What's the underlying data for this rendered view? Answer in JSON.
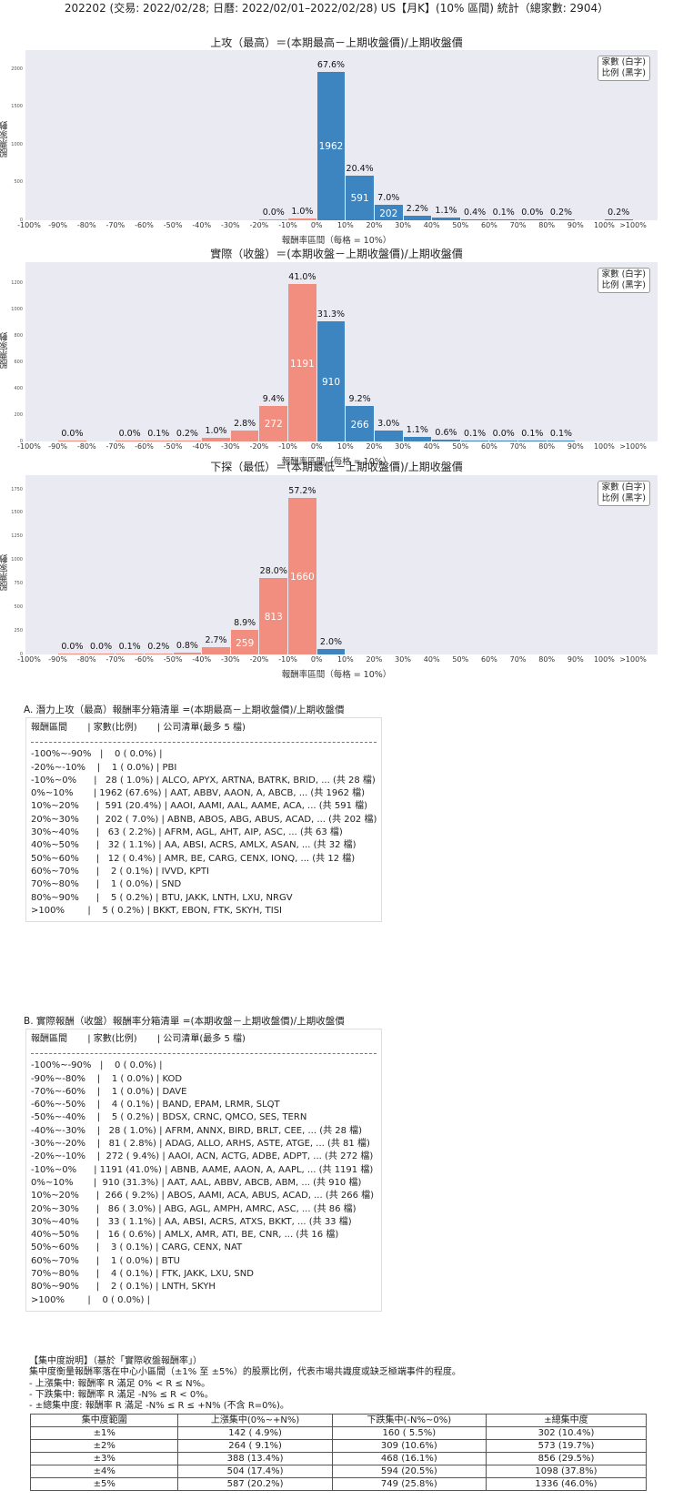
{
  "header": {
    "title": "202202 (交易: 2022/02/28; 日曆: 2022/02/01–2022/02/28) US【月K】(10% 區間) 統計（總家數: 2904）"
  },
  "common": {
    "ylabel": "股票家數",
    "xlabel": "報酬率區間（每格 = 10%）",
    "legend_line1": "家數 (白字)",
    "legend_line2": "比例 (黑字)",
    "xticks": [
      "-100%",
      "-90%",
      "-80%",
      "-70%",
      "-60%",
      "-50%",
      "-40%",
      "-30%",
      "-20%",
      "-10%",
      "0%",
      "10%",
      "20%",
      "30%",
      "40%",
      "50%",
      "60%",
      "70%",
      "80%",
      "90%",
      "100%",
      ">100%"
    ],
    "colors": {
      "negative": "#f28e7f",
      "positive": "#3d85c0",
      "plot_bg": "#eaeaf2"
    }
  },
  "chart_data": [
    {
      "type": "bar",
      "title": "上攻（最高）＝(本期最高－上期收盤價)/上期收盤價",
      "xlabel": "報酬率區間（每格 = 10%）",
      "ylabel": "股票家數",
      "yticks": [
        0,
        500,
        1000,
        1500,
        2000
      ],
      "ylim": [
        0,
        2250
      ],
      "categories": [
        "-100%~-90%",
        "-90%~-80%",
        "-80%~-70%",
        "-70%~-60%",
        "-60%~-50%",
        "-50%~-40%",
        "-40%~-30%",
        "-30%~-20%",
        "-20%~-10%",
        "-10%~0%",
        "0%~10%",
        "10%~20%",
        "20%~30%",
        "30%~40%",
        "40%~50%",
        "50%~60%",
        "60%~70%",
        "70%~80%",
        "80%~90%",
        "90%~100%",
        ">100%"
      ],
      "values": [
        0,
        0,
        0,
        0,
        0,
        0,
        0,
        0,
        1,
        28,
        1962,
        591,
        202,
        63,
        32,
        12,
        2,
        1,
        5,
        0,
        5
      ],
      "percent_labels": [
        "",
        "",
        "",
        "",
        "",
        "",
        "",
        "",
        "0.0%",
        "1.0%",
        "67.6%",
        "20.4%",
        "7.0%",
        "2.2%",
        "1.1%",
        "0.4%",
        "0.1%",
        "0.0%",
        "0.2%",
        "",
        "0.2%"
      ]
    },
    {
      "type": "bar",
      "title": "實際（收盤）＝(本期收盤－上期收盤價)/上期收盤價",
      "xlabel": "報酬率區間（每格 = 10%）",
      "ylabel": "股票家數",
      "yticks": [
        0,
        200,
        400,
        600,
        800,
        1000,
        1200
      ],
      "ylim": [
        0,
        1360
      ],
      "categories": [
        "-100%~-90%",
        "-90%~-80%",
        "-80%~-70%",
        "-70%~-60%",
        "-60%~-50%",
        "-50%~-40%",
        "-40%~-30%",
        "-30%~-20%",
        "-20%~-10%",
        "-10%~0%",
        "0%~10%",
        "10%~20%",
        "20%~30%",
        "30%~40%",
        "40%~50%",
        "50%~60%",
        "60%~70%",
        "70%~80%",
        "80%~90%",
        "90%~100%",
        ">100%"
      ],
      "values": [
        0,
        1,
        0,
        1,
        4,
        5,
        28,
        81,
        272,
        1191,
        910,
        266,
        86,
        33,
        16,
        3,
        1,
        4,
        2,
        0,
        0
      ],
      "percent_labels": [
        "",
        "0.0%",
        "",
        "0.0%",
        "0.1%",
        "0.2%",
        "1.0%",
        "2.8%",
        "9.4%",
        "41.0%",
        "31.3%",
        "9.2%",
        "3.0%",
        "1.1%",
        "0.6%",
        "0.1%",
        "0.0%",
        "0.1%",
        "0.1%",
        "",
        ""
      ]
    },
    {
      "type": "bar",
      "title": "下探（最低）＝(本期最低－上期收盤價)/上期收盤價",
      "xlabel": "報酬率區間（每格 = 10%）",
      "ylabel": "股票家數",
      "yticks": [
        0,
        250,
        500,
        750,
        1000,
        1250,
        1500,
        1750
      ],
      "ylim": [
        0,
        1900
      ],
      "categories": [
        "-100%~-90%",
        "-90%~-80%",
        "-80%~-70%",
        "-70%~-60%",
        "-60%~-50%",
        "-50%~-40%",
        "-40%~-30%",
        "-30%~-20%",
        "-20%~-10%",
        "-10%~0%",
        "0%~10%",
        "10%~20%",
        "20%~30%",
        "30%~40%",
        "40%~50%",
        "50%~60%",
        "60%~70%",
        "70%~80%",
        "80%~90%",
        "90%~100%",
        ">100%"
      ],
      "values": [
        0,
        1,
        1,
        3,
        6,
        24,
        79,
        259,
        813,
        1660,
        59,
        0,
        0,
        0,
        0,
        0,
        0,
        0,
        0,
        0,
        0
      ],
      "percent_labels": [
        "",
        "0.0%",
        "0.0%",
        "0.1%",
        "0.2%",
        "0.8%",
        "2.7%",
        "8.9%",
        "28.0%",
        "57.2%",
        "2.0%",
        "",
        "",
        "",
        "",
        "",
        "",
        "",
        "",
        "",
        ""
      ]
    }
  ],
  "list_a": {
    "title": "A. 潛力上攻（最高）報酬率分箱清單 =(本期最高－上期收盤價)/上期收盤價",
    "header": "報酬區間       | 家數(比例)       | 公司清單(最多 5 檔)",
    "rows": [
      "-100%~-90%   |    0 ( 0.0%) |",
      "-20%~-10%    |    1 ( 0.0%) | PBI",
      "-10%~0%      |   28 ( 1.0%) | ALCO, APYX, ARTNA, BATRK, BRID, ... (共 28 檔)",
      "0%~10%       | 1962 (67.6%) | AAT, ABBV, AAON, A, ABCB, ... (共 1962 檔)",
      "10%~20%      |  591 (20.4%) | AAOI, AAMI, AAL, AAME, ACA, ... (共 591 檔)",
      "20%~30%      |  202 ( 7.0%) | ABNB, ABOS, ABG, ABUS, ACAD, ... (共 202 檔)",
      "30%~40%      |   63 ( 2.2%) | AFRM, AGL, AHT, AIP, ASC, ... (共 63 檔)",
      "40%~50%      |   32 ( 1.1%) | AA, ABSI, ACRS, AMLX, ASAN, ... (共 32 檔)",
      "50%~60%      |   12 ( 0.4%) | AMR, BE, CARG, CENX, IONQ, ... (共 12 檔)",
      "60%~70%      |    2 ( 0.1%) | IVVD, KPTI",
      "70%~80%      |    1 ( 0.0%) | SND",
      "80%~90%      |    5 ( 0.2%) | BTU, JAKK, LNTH, LXU, NRGV",
      ">100%        |    5 ( 0.2%) | BKKT, EBON, FTK, SKYH, TISI"
    ]
  },
  "list_b": {
    "title": "B. 實際報酬（收盤）報酬率分箱清單 =(本期收盤－上期收盤價)/上期收盤價",
    "header": "報酬區間       | 家數(比例)       | 公司清單(最多 5 檔)",
    "rows": [
      "-100%~-90%   |    0 ( 0.0%) |",
      "-90%~-80%    |    1 ( 0.0%) | KOD",
      "-70%~-60%    |    1 ( 0.0%) | DAVE",
      "-60%~-50%    |    4 ( 0.1%) | BAND, EPAM, LRMR, SLQT",
      "-50%~-40%    |    5 ( 0.2%) | BDSX, CRNC, QMCO, SES, TERN",
      "-40%~-30%    |   28 ( 1.0%) | AFRM, ANNX, BIRD, BRLT, CEE, ... (共 28 檔)",
      "-30%~-20%    |   81 ( 2.8%) | ADAG, ALLO, ARHS, ASTE, ATGE, ... (共 81 檔)",
      "-20%~-10%    |  272 ( 9.4%) | AAOI, ACN, ACTG, ADBE, ADPT, ... (共 272 檔)",
      "-10%~0%      | 1191 (41.0%) | ABNB, AAME, AAON, A, AAPL, ... (共 1191 檔)",
      "0%~10%       |  910 (31.3%) | AAT, AAL, ABBV, ABCB, ABM, ... (共 910 檔)",
      "10%~20%      |  266 ( 9.2%) | ABOS, AAMI, ACA, ABUS, ACAD, ... (共 266 檔)",
      "20%~30%      |   86 ( 3.0%) | ABG, AGL, AMPH, AMRC, ASC, ... (共 86 檔)",
      "30%~40%      |   33 ( 1.1%) | AA, ABSI, ACRS, ATXS, BKKT, ... (共 33 檔)",
      "40%~50%      |   16 ( 0.6%) | AMLX, AMR, ATI, BE, CNR, ... (共 16 檔)",
      "50%~60%      |    3 ( 0.1%) | CARG, CENX, NAT",
      "60%~70%      |    1 ( 0.0%) | BTU",
      "70%~80%      |    4 ( 0.1%) | FTK, JAKK, LXU, SND",
      "80%~90%      |    2 ( 0.1%) | LNTH, SKYH",
      ">100%        |    0 ( 0.0%) |"
    ]
  },
  "concentration": {
    "title": "【集中度說明】（基於「實際收盤報酬率」）",
    "desc": "集中度衡量報酬率落在中心小區間（±1% 至 ±5%）的股票比例，代表市場共識度或缺乏極端事件的程度。",
    "bullet1": "- 上漲集中: 報酬率 R 滿足 0% < R ≤ N%。",
    "bullet2": "- 下跌集中: 報酬率 R 滿足 -N% ≤ R < 0%。",
    "bullet3": "- ±總集中度: 報酬率 R 滿足 -N% ≤ R ≤ +N% (不含 R=0%)。",
    "columns": [
      "集中度範圍",
      "上漲集中(0%~+N%)",
      "下跌集中(-N%~0%)",
      "±總集中度"
    ],
    "rows": [
      [
        "±1%",
        "142 ( 4.9%)",
        "160 ( 5.5%)",
        "302 (10.4%)"
      ],
      [
        "±2%",
        "264 ( 9.1%)",
        "309 (10.6%)",
        "573 (19.7%)"
      ],
      [
        "±3%",
        "388 (13.4%)",
        "468 (16.1%)",
        "856 (29.5%)"
      ],
      [
        "±4%",
        "504 (17.4%)",
        "594 (20.5%)",
        "1098 (37.8%)"
      ],
      [
        "±5%",
        "587 (20.2%)",
        "749 (25.8%)",
        "1336 (46.0%)"
      ]
    ]
  }
}
